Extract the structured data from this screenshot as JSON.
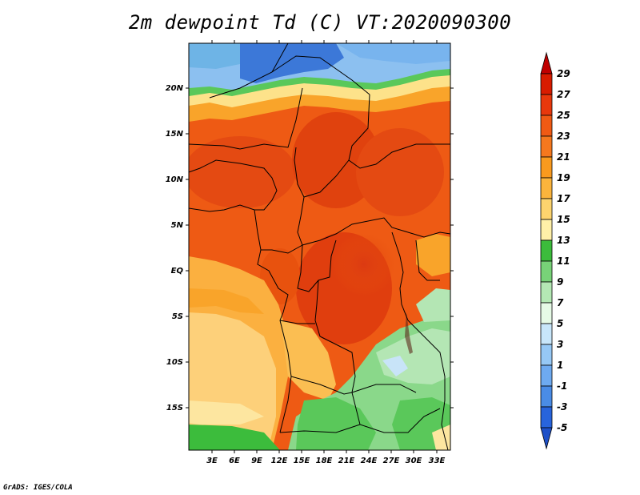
{
  "title": "2m dewpoint Td (C) VT:2020090300",
  "credit": "GrADS: IGES/COLA",
  "map": {
    "lat_labels": [
      "20N",
      "15N",
      "10N",
      "5N",
      "EQ",
      "5S",
      "10S",
      "15S"
    ],
    "lon_labels": [
      "3E",
      "6E",
      "9E",
      "12E",
      "15E",
      "18E",
      "21E",
      "24E",
      "27E",
      "30E",
      "33E"
    ]
  },
  "colorbar": {
    "labels": [
      "29",
      "27",
      "25",
      "23",
      "21",
      "19",
      "17",
      "15",
      "13",
      "11",
      "9",
      "7",
      "5",
      "3",
      "1",
      "-1",
      "-3",
      "-5"
    ],
    "colors_top_to_bottom": [
      "#c00000",
      "#d81c00",
      "#e8380c",
      "#f05a14",
      "#f5781e",
      "#f99a1e",
      "#fbb43c",
      "#fdd46e",
      "#fff0a8",
      "#3cbc3c",
      "#78d278",
      "#b4e8b4",
      "#e6fae6",
      "#c8e6fa",
      "#96c8f5",
      "#6eaaf0",
      "#4a8ce6",
      "#2864dc",
      "#1e50c8"
    ]
  }
}
